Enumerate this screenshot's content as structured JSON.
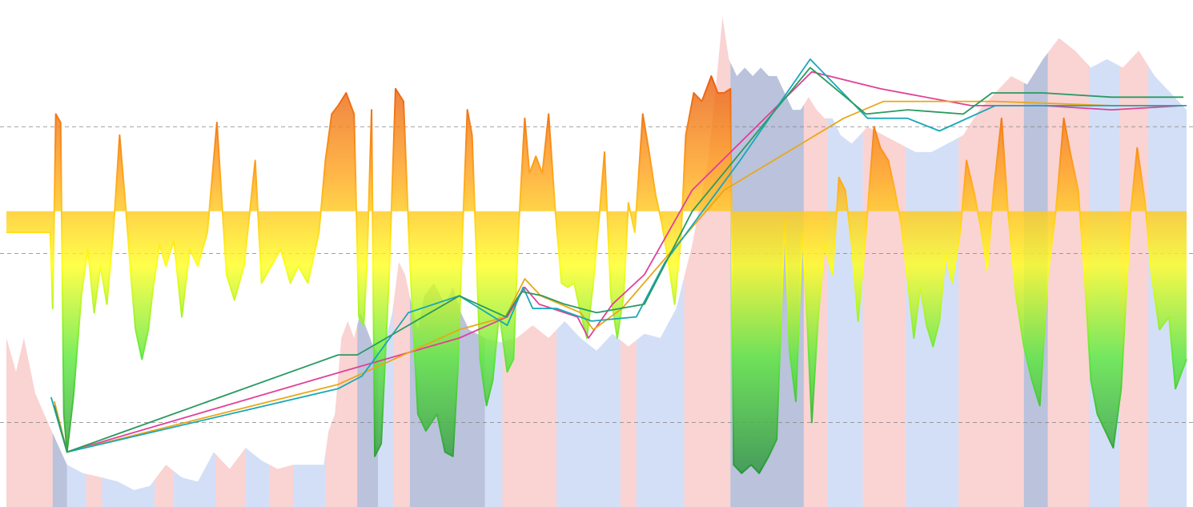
{
  "chart_data": {
    "type": "area",
    "title": "",
    "xlabel": "",
    "ylabel": "",
    "grid": "horizontal-dashed",
    "legend": "none",
    "xlim": [
      0,
      1480
    ],
    "ylim": [
      -10,
      110
    ],
    "reference_lines": [
      10,
      50,
      80
    ],
    "baseline": 60,
    "colors": {
      "oscillator_high": "#e0440e",
      "oscillator_mid_high": "#ffa21a",
      "oscillator_center": "#ffff1c",
      "oscillator_mid_low": "#5be83a",
      "oscillator_low": "#1c7a3c",
      "regime_red": "#f6a8a8",
      "regime_blue": "#a8bff0",
      "regime_navy": "#8c9ac4",
      "gridline": "#888888",
      "series_magenta": "#e0409a",
      "series_orange": "#e8a818",
      "series_teal": "#18a8b8",
      "series_green": "#2a9a60"
    },
    "oscillator": [
      [
        0,
        55
      ],
      [
        30,
        55
      ],
      [
        55,
        55
      ],
      [
        58,
        37
      ],
      [
        62,
        83
      ],
      [
        68,
        81
      ],
      [
        72,
        12
      ],
      [
        76,
        3
      ],
      [
        84,
        16
      ],
      [
        94,
        40
      ],
      [
        102,
        51
      ],
      [
        110,
        36
      ],
      [
        118,
        47
      ],
      [
        126,
        38
      ],
      [
        134,
        55
      ],
      [
        142,
        78
      ],
      [
        150,
        60
      ],
      [
        156,
        45
      ],
      [
        162,
        32
      ],
      [
        170,
        25
      ],
      [
        178,
        32
      ],
      [
        184,
        42
      ],
      [
        192,
        52
      ],
      [
        200,
        47
      ],
      [
        210,
        53
      ],
      [
        220,
        35
      ],
      [
        230,
        51
      ],
      [
        240,
        47
      ],
      [
        252,
        55
      ],
      [
        264,
        81
      ],
      [
        276,
        45
      ],
      [
        286,
        39
      ],
      [
        298,
        47
      ],
      [
        312,
        72
      ],
      [
        320,
        43
      ],
      [
        332,
        47
      ],
      [
        344,
        51
      ],
      [
        356,
        43
      ],
      [
        366,
        47
      ],
      [
        378,
        43
      ],
      [
        392,
        55
      ],
      [
        400,
        72
      ],
      [
        408,
        83
      ],
      [
        416,
        85
      ],
      [
        426,
        88
      ],
      [
        436,
        83
      ],
      [
        442,
        35
      ],
      [
        448,
        33
      ],
      [
        452,
        47
      ],
      [
        458,
        84
      ],
      [
        462,
        2
      ],
      [
        470,
        5
      ],
      [
        480,
        45
      ],
      [
        488,
        89
      ],
      [
        498,
        86
      ],
      [
        506,
        48
      ],
      [
        516,
        12
      ],
      [
        526,
        8
      ],
      [
        540,
        12
      ],
      [
        550,
        3
      ],
      [
        560,
        2
      ],
      [
        566,
        22
      ],
      [
        572,
        55
      ],
      [
        578,
        84
      ],
      [
        584,
        78
      ],
      [
        594,
        25
      ],
      [
        602,
        14
      ],
      [
        610,
        20
      ],
      [
        618,
        36
      ],
      [
        628,
        22
      ],
      [
        636,
        25
      ],
      [
        642,
        55
      ],
      [
        650,
        82
      ],
      [
        656,
        69
      ],
      [
        664,
        73
      ],
      [
        672,
        69
      ],
      [
        680,
        83
      ],
      [
        688,
        61
      ],
      [
        696,
        43
      ],
      [
        704,
        42
      ],
      [
        712,
        43
      ],
      [
        720,
        36
      ],
      [
        728,
        30
      ],
      [
        736,
        43
      ],
      [
        744,
        60
      ],
      [
        750,
        74
      ],
      [
        758,
        40
      ],
      [
        766,
        30
      ],
      [
        774,
        40
      ],
      [
        780,
        62
      ],
      [
        788,
        55
      ],
      [
        798,
        83
      ],
      [
        806,
        74
      ],
      [
        814,
        64
      ],
      [
        822,
        57
      ],
      [
        830,
        48
      ],
      [
        838,
        38
      ],
      [
        846,
        54
      ],
      [
        852,
        78
      ],
      [
        862,
        88
      ],
      [
        872,
        86
      ],
      [
        884,
        92
      ],
      [
        892,
        88
      ],
      [
        900,
        88
      ],
      [
        908,
        89
      ],
      [
        912,
        0
      ],
      [
        922,
        -2
      ],
      [
        934,
        0
      ],
      [
        944,
        -2
      ],
      [
        956,
        2
      ],
      [
        966,
        6
      ],
      [
        976,
        58
      ],
      [
        982,
        27
      ],
      [
        990,
        15
      ],
      [
        998,
        55
      ],
      [
        1004,
        35
      ],
      [
        1010,
        10
      ],
      [
        1018,
        35
      ],
      [
        1026,
        52
      ],
      [
        1036,
        45
      ],
      [
        1044,
        68
      ],
      [
        1052,
        65
      ],
      [
        1060,
        52
      ],
      [
        1068,
        34
      ],
      [
        1078,
        55
      ],
      [
        1088,
        80
      ],
      [
        1096,
        75
      ],
      [
        1106,
        72
      ],
      [
        1114,
        65
      ],
      [
        1122,
        57
      ],
      [
        1130,
        44
      ],
      [
        1138,
        30
      ],
      [
        1146,
        42
      ],
      [
        1154,
        33
      ],
      [
        1162,
        28
      ],
      [
        1170,
        34
      ],
      [
        1178,
        50
      ],
      [
        1186,
        43
      ],
      [
        1196,
        55
      ],
      [
        1204,
        72
      ],
      [
        1214,
        64
      ],
      [
        1222,
        56
      ],
      [
        1230,
        46
      ],
      [
        1238,
        65
      ],
      [
        1248,
        82
      ],
      [
        1256,
        60
      ],
      [
        1266,
        40
      ],
      [
        1276,
        28
      ],
      [
        1286,
        20
      ],
      [
        1296,
        14
      ],
      [
        1306,
        45
      ],
      [
        1316,
        60
      ],
      [
        1326,
        82
      ],
      [
        1334,
        74
      ],
      [
        1344,
        65
      ],
      [
        1352,
        45
      ],
      [
        1360,
        20
      ],
      [
        1368,
        12
      ],
      [
        1378,
        8
      ],
      [
        1388,
        4
      ],
      [
        1398,
        18
      ],
      [
        1410,
        60
      ],
      [
        1418,
        75
      ],
      [
        1428,
        62
      ],
      [
        1436,
        45
      ],
      [
        1446,
        32
      ],
      [
        1458,
        35
      ],
      [
        1466,
        18
      ],
      [
        1474,
        22
      ],
      [
        1480,
        25
      ]
    ],
    "background_profile": [
      [
        0,
        30
      ],
      [
        12,
        22
      ],
      [
        22,
        30
      ],
      [
        36,
        17
      ],
      [
        52,
        10
      ],
      [
        64,
        5
      ],
      [
        76,
        0
      ],
      [
        96,
        -2
      ],
      [
        120,
        -3
      ],
      [
        140,
        -4
      ],
      [
        160,
        -6
      ],
      [
        180,
        -5
      ],
      [
        200,
        0
      ],
      [
        220,
        -3
      ],
      [
        240,
        -4
      ],
      [
        260,
        3
      ],
      [
        280,
        -1
      ],
      [
        300,
        4
      ],
      [
        320,
        1
      ],
      [
        340,
        -1
      ],
      [
        360,
        0
      ],
      [
        380,
        0
      ],
      [
        398,
        0
      ],
      [
        404,
        8
      ],
      [
        412,
        12
      ],
      [
        420,
        30
      ],
      [
        428,
        34
      ],
      [
        436,
        30
      ],
      [
        444,
        36
      ],
      [
        452,
        32
      ],
      [
        460,
        28
      ],
      [
        468,
        26
      ],
      [
        476,
        30
      ],
      [
        484,
        36
      ],
      [
        492,
        48
      ],
      [
        500,
        45
      ],
      [
        508,
        38
      ],
      [
        516,
        32
      ],
      [
        524,
        40
      ],
      [
        536,
        43
      ],
      [
        550,
        38
      ],
      [
        560,
        42
      ],
      [
        570,
        36
      ],
      [
        580,
        32
      ],
      [
        600,
        30
      ],
      [
        620,
        29
      ],
      [
        640,
        30
      ],
      [
        660,
        33
      ],
      [
        680,
        30
      ],
      [
        700,
        34
      ],
      [
        720,
        30
      ],
      [
        740,
        27
      ],
      [
        760,
        31
      ],
      [
        780,
        28
      ],
      [
        800,
        31
      ],
      [
        820,
        30
      ],
      [
        840,
        37
      ],
      [
        860,
        52
      ],
      [
        880,
        72
      ],
      [
        890,
        90
      ],
      [
        898,
        106
      ],
      [
        906,
        96
      ],
      [
        916,
        92
      ],
      [
        926,
        94
      ],
      [
        936,
        92
      ],
      [
        946,
        94
      ],
      [
        956,
        92
      ],
      [
        966,
        92
      ],
      [
        976,
        88
      ],
      [
        986,
        84
      ],
      [
        996,
        84
      ],
      [
        1006,
        87
      ],
      [
        1016,
        84
      ],
      [
        1026,
        82
      ],
      [
        1036,
        82
      ],
      [
        1046,
        78
      ],
      [
        1060,
        76
      ],
      [
        1080,
        80
      ],
      [
        1100,
        78
      ],
      [
        1120,
        76
      ],
      [
        1140,
        74
      ],
      [
        1160,
        74
      ],
      [
        1180,
        76
      ],
      [
        1200,
        78
      ],
      [
        1220,
        84
      ],
      [
        1240,
        88
      ],
      [
        1260,
        92
      ],
      [
        1280,
        90
      ],
      [
        1300,
        96
      ],
      [
        1320,
        101
      ],
      [
        1340,
        98
      ],
      [
        1360,
        94
      ],
      [
        1380,
        96
      ],
      [
        1400,
        94
      ],
      [
        1420,
        98
      ],
      [
        1440,
        92
      ],
      [
        1460,
        88
      ],
      [
        1480,
        84
      ]
    ],
    "regime_bands": [
      [
        0,
        58,
        "red"
      ],
      [
        58,
        76,
        "navy"
      ],
      [
        76,
        100,
        "blue"
      ],
      [
        100,
        120,
        "red"
      ],
      [
        120,
        150,
        "blue"
      ],
      [
        150,
        186,
        "blue"
      ],
      [
        186,
        210,
        "red"
      ],
      [
        210,
        262,
        "blue"
      ],
      [
        262,
        300,
        "red"
      ],
      [
        300,
        330,
        "blue"
      ],
      [
        330,
        360,
        "red"
      ],
      [
        360,
        400,
        "blue"
      ],
      [
        400,
        420,
        "red"
      ],
      [
        420,
        440,
        "red"
      ],
      [
        440,
        466,
        "navy"
      ],
      [
        466,
        486,
        "blue"
      ],
      [
        486,
        506,
        "red"
      ],
      [
        506,
        600,
        "navy"
      ],
      [
        600,
        622,
        "blue"
      ],
      [
        622,
        646,
        "red"
      ],
      [
        646,
        690,
        "red"
      ],
      [
        690,
        720,
        "blue"
      ],
      [
        720,
        770,
        "blue"
      ],
      [
        770,
        790,
        "red"
      ],
      [
        790,
        812,
        "blue"
      ],
      [
        812,
        850,
        "blue"
      ],
      [
        850,
        908,
        "red"
      ],
      [
        908,
        1000,
        "navy"
      ],
      [
        1000,
        1030,
        "red"
      ],
      [
        1030,
        1074,
        "blue"
      ],
      [
        1074,
        1128,
        "red"
      ],
      [
        1128,
        1194,
        "blue"
      ],
      [
        1194,
        1222,
        "red"
      ],
      [
        1222,
        1276,
        "red"
      ],
      [
        1276,
        1306,
        "navy"
      ],
      [
        1306,
        1358,
        "red"
      ],
      [
        1358,
        1396,
        "blue"
      ],
      [
        1396,
        1432,
        "red"
      ],
      [
        1432,
        1480,
        "blue"
      ]
    ],
    "series": [
      {
        "color_key": "series_magenta",
        "points": [
          [
            60,
            15
          ],
          [
            76,
            3
          ],
          [
            420,
            22
          ],
          [
            568,
            30
          ],
          [
            628,
            35
          ],
          [
            650,
            42
          ],
          [
            668,
            38
          ],
          [
            716,
            35
          ],
          [
            730,
            30
          ],
          [
            760,
            38
          ],
          [
            800,
            45
          ],
          [
            860,
            65
          ],
          [
            1010,
            93
          ],
          [
            1096,
            89
          ],
          [
            1210,
            85
          ],
          [
            1300,
            85
          ],
          [
            1386,
            84
          ],
          [
            1476,
            85
          ]
        ]
      },
      {
        "color_key": "series_orange",
        "points": [
          [
            60,
            15
          ],
          [
            76,
            3
          ],
          [
            416,
            19
          ],
          [
            568,
            32
          ],
          [
            626,
            35
          ],
          [
            650,
            44
          ],
          [
            670,
            40
          ],
          [
            720,
            36
          ],
          [
            736,
            32
          ],
          [
            772,
            37
          ],
          [
            900,
            65
          ],
          [
            1050,
            82
          ],
          [
            1100,
            86
          ],
          [
            1240,
            86
          ],
          [
            1386,
            85
          ],
          [
            1476,
            85
          ]
        ]
      },
      {
        "color_key": "series_teal",
        "points": [
          [
            56,
            16
          ],
          [
            76,
            3
          ],
          [
            416,
            18
          ],
          [
            446,
            21
          ],
          [
            504,
            36
          ],
          [
            568,
            40
          ],
          [
            628,
            33
          ],
          [
            648,
            42
          ],
          [
            660,
            37
          ],
          [
            690,
            37
          ],
          [
            734,
            34
          ],
          [
            790,
            35
          ],
          [
            826,
            48
          ],
          [
            920,
            72
          ],
          [
            1008,
            96
          ],
          [
            1080,
            82
          ],
          [
            1130,
            82
          ],
          [
            1170,
            79
          ],
          [
            1240,
            85
          ],
          [
            1386,
            85
          ],
          [
            1480,
            85
          ]
        ]
      },
      {
        "color_key": "series_green",
        "points": [
          [
            60,
            14
          ],
          [
            76,
            3
          ],
          [
            416,
            26
          ],
          [
            440,
            26
          ],
          [
            568,
            40
          ],
          [
            626,
            35
          ],
          [
            646,
            41
          ],
          [
            672,
            40
          ],
          [
            700,
            38
          ],
          [
            740,
            36
          ],
          [
            800,
            38
          ],
          [
            860,
            60
          ],
          [
            1008,
            94
          ],
          [
            1078,
            83
          ],
          [
            1130,
            84
          ],
          [
            1200,
            83
          ],
          [
            1236,
            88
          ],
          [
            1300,
            88
          ],
          [
            1386,
            87
          ],
          [
            1476,
            87
          ]
        ]
      }
    ]
  }
}
